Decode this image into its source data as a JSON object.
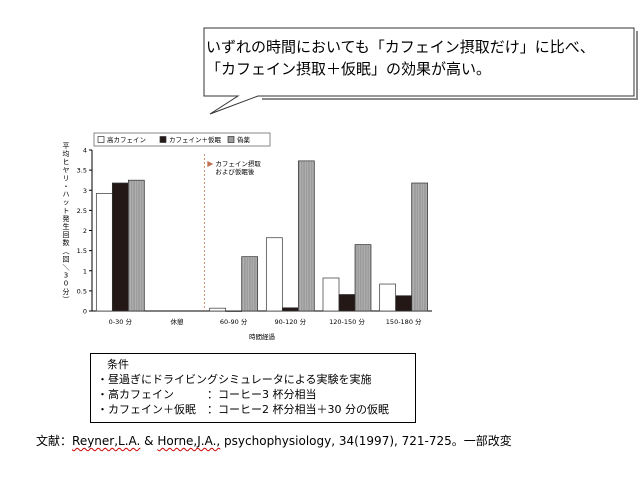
{
  "callout": {
    "line1": "いずれの時間においても「カフェイン摂取だけ」に比べ、",
    "line2": "「カフェイン摂取＋仮眠」の効果が高い。"
  },
  "chart_data": {
    "type": "bar",
    "title": "",
    "ylabel": "平均ヒヤリ・ハット発生回数（回／30分）",
    "xlabel": "時間経過",
    "ylim": [
      0,
      4
    ],
    "yticks": [
      "0",
      "0.5",
      "1",
      "1.5",
      "2",
      "2.5",
      "3",
      "3.5",
      "4"
    ],
    "categories": [
      "0-30 分",
      "休憩",
      "60-90 分",
      "90-120 分",
      "120-150 分",
      "150-180 分"
    ],
    "series": [
      {
        "name": "高カフェイン",
        "color": "#ffffff",
        "values": [
          2.92,
          null,
          0.07,
          1.82,
          0.82,
          0.67
        ]
      },
      {
        "name": "カフェイン＋仮眠",
        "color": "#231816",
        "values": [
          3.18,
          null,
          0.0,
          0.08,
          0.41,
          0.38
        ]
      },
      {
        "name": "偽薬",
        "color": "#9c9c9c",
        "values": [
          3.25,
          null,
          1.35,
          3.73,
          1.65,
          3.18
        ]
      }
    ],
    "annotation": {
      "line1": "カフェイン摂取",
      "line2": "および仮眠後"
    },
    "legend_position": "top-left",
    "grid": false
  },
  "conditions": {
    "title": "条件",
    "line1": "・昼過ぎにドライビングシミュレータによる実験を実施",
    "line2": "・高カフェイン　　　：コーヒー3 杯分相当",
    "line3": "・カフェイン＋仮眠　：コーヒー2 杯分相当＋30 分の仮眠"
  },
  "reference": {
    "prefix": "文献：",
    "authors1": "Reyner,L.A.",
    "amp": " & ",
    "authors2": "Horne,J.A.,",
    "rest": " psychophysiology, 34(1997), 721-725。一部改変"
  }
}
